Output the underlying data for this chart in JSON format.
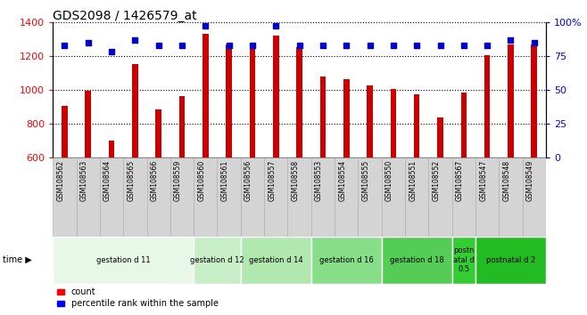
{
  "title": "GDS2098 / 1426579_at",
  "samples": [
    "GSM108562",
    "GSM108563",
    "GSM108564",
    "GSM108565",
    "GSM108566",
    "GSM108559",
    "GSM108560",
    "GSM108561",
    "GSM108556",
    "GSM108557",
    "GSM108558",
    "GSM108553",
    "GSM108554",
    "GSM108555",
    "GSM108550",
    "GSM108551",
    "GSM108552",
    "GSM108567",
    "GSM108547",
    "GSM108548",
    "GSM108549"
  ],
  "counts": [
    905,
    995,
    700,
    1150,
    885,
    965,
    1330,
    1265,
    1260,
    1320,
    1250,
    1080,
    1060,
    1025,
    1005,
    975,
    835,
    985,
    1205,
    1270,
    1265
  ],
  "pct_vals": [
    83,
    85,
    78,
    87,
    83,
    83,
    97,
    83,
    83,
    97,
    83,
    83,
    83,
    83,
    83,
    83,
    83,
    83,
    83,
    87,
    85
  ],
  "bar_color": "#cc0000",
  "dot_color": "#0000cc",
  "ylim_left": [
    600,
    1400
  ],
  "ylim_right": [
    0,
    100
  ],
  "yticks_left": [
    600,
    800,
    1000,
    1200,
    1400
  ],
  "yticks_right": [
    0,
    25,
    50,
    75,
    100
  ],
  "ytick_labels_right": [
    "0",
    "25",
    "50",
    "75",
    "100%"
  ],
  "groups": [
    {
      "label": "gestation d 11",
      "start": 0,
      "end": 6,
      "color": "#e8f8e8"
    },
    {
      "label": "gestation d 12",
      "start": 6,
      "end": 8,
      "color": "#c8eec8"
    },
    {
      "label": "gestation d 14",
      "start": 8,
      "end": 11,
      "color": "#b0e8b0"
    },
    {
      "label": "gestation d 16",
      "start": 11,
      "end": 14,
      "color": "#88dd88"
    },
    {
      "label": "gestation d 18",
      "start": 14,
      "end": 17,
      "color": "#55cc55"
    },
    {
      "label": "postn\natal d\n0.5",
      "start": 17,
      "end": 18,
      "color": "#33cc33"
    },
    {
      "label": "postnatal d 2",
      "start": 18,
      "end": 21,
      "color": "#22bb22"
    }
  ],
  "legend_count": "count",
  "legend_percentile": "percentile rank within the sample",
  "background_color": "#ffffff",
  "title_fontsize": 10,
  "bar_width": 0.25
}
